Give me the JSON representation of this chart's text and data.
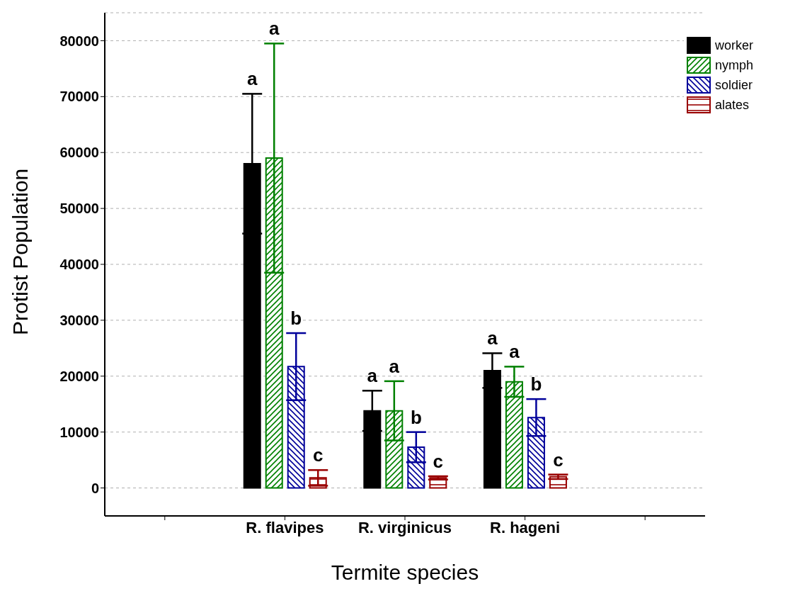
{
  "chart_data": {
    "type": "bar",
    "xlabel": "Termite species",
    "ylabel": "Protist Population",
    "categories": [
      null,
      "R. flavipes",
      "R. virginicus",
      "R. hageni",
      null
    ],
    "series": [
      {
        "name": "worker",
        "color": "#000000",
        "values": [
          null,
          58000,
          13800,
          21000,
          null
        ],
        "errors": [
          null,
          12500,
          3600,
          3100,
          null
        ]
      },
      {
        "name": "nymph",
        "color": "#008000",
        "values": [
          null,
          59000,
          13800,
          19000,
          null
        ],
        "errors": [
          null,
          20500,
          5300,
          2700,
          null
        ]
      },
      {
        "name": "soldier",
        "color": "#00009a",
        "values": [
          null,
          21700,
          7300,
          12600,
          null
        ],
        "errors": [
          null,
          6000,
          2700,
          3300,
          null
        ]
      },
      {
        "name": "alates",
        "color": "#990000",
        "values": [
          null,
          1800,
          1800,
          2000,
          null
        ],
        "errors": [
          null,
          1400,
          300,
          400,
          null
        ]
      }
    ],
    "ylim": [
      -5000,
      85000
    ],
    "yticks": [
      0,
      10000,
      20000,
      30000,
      40000,
      50000,
      60000,
      70000,
      80000
    ],
    "grid": "y",
    "legend": "top right",
    "annotations": [
      "a",
      "a",
      "b",
      "c",
      "a",
      "a",
      "b",
      "c",
      "a",
      "a",
      "b",
      "c"
    ]
  }
}
